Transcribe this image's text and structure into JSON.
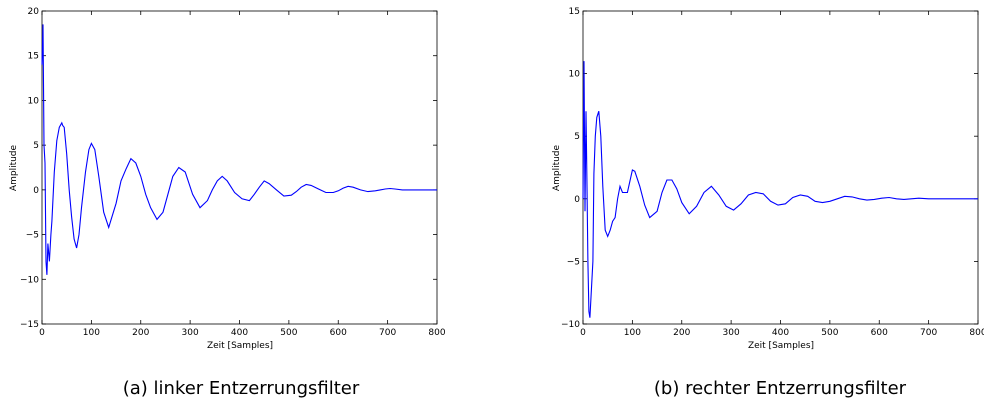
{
  "chart_data": [
    {
      "type": "line",
      "caption": "(a) linker Entzerrungsfilter",
      "xlabel": "Zeit [Samples]",
      "ylabel": "Amplitude",
      "xlim": [
        0,
        800
      ],
      "ylim": [
        -15,
        20
      ],
      "xticks": [
        0,
        100,
        200,
        300,
        400,
        500,
        600,
        700,
        800
      ],
      "yticks": [
        -15,
        -10,
        -5,
        0,
        5,
        10,
        15,
        20
      ],
      "color": "#0000ff",
      "series": [
        {
          "x": [
            0,
            2,
            4,
            6,
            8,
            10,
            12,
            15,
            18,
            20,
            25,
            30,
            35,
            40,
            42,
            45,
            50,
            55,
            60,
            65,
            70,
            75,
            80,
            88,
            95,
            100,
            107,
            115,
            125,
            135,
            150,
            160,
            170,
            180,
            190,
            200,
            210,
            220,
            233,
            245,
            255,
            265,
            277,
            290,
            305,
            320,
            335,
            345,
            355,
            365,
            375,
            390,
            405,
            420,
            430,
            440,
            450,
            460,
            475,
            490,
            505,
            515,
            525,
            535,
            545,
            560,
            575,
            590,
            600,
            610,
            620,
            630,
            645,
            660,
            675,
            685,
            695,
            705,
            715,
            730,
            760,
            800
          ],
          "y": [
            14,
            18.5,
            5,
            3,
            -8,
            -9.5,
            -6,
            -8,
            -5,
            -3.5,
            2,
            5.5,
            7,
            7.5,
            7.2,
            7,
            4,
            0,
            -3,
            -5.5,
            -6.5,
            -5,
            -2,
            2,
            4.5,
            5.2,
            4.5,
            1.5,
            -2.5,
            -4.2,
            -1.5,
            1,
            2.3,
            3.5,
            3,
            1.5,
            -0.5,
            -2,
            -3.3,
            -2.5,
            -0.5,
            1.5,
            2.5,
            2,
            -0.5,
            -2,
            -1.2,
            0,
            1,
            1.5,
            1,
            -0.3,
            -1,
            -1.2,
            -0.5,
            0.3,
            1,
            0.7,
            0,
            -0.7,
            -0.6,
            -0.2,
            0.3,
            0.6,
            0.5,
            0.1,
            -0.3,
            -0.3,
            -0.1,
            0.2,
            0.4,
            0.3,
            0,
            -0.2,
            -0.1,
            0,
            0.1,
            0.15,
            0.1,
            0,
            0,
            0
          ]
        }
      ]
    },
    {
      "type": "line",
      "caption": "(b) rechter Entzerrungsfilter",
      "xlabel": "Zeit [Samples]",
      "ylabel": "Amplitude",
      "xlim": [
        0,
        800
      ],
      "ylim": [
        -10,
        15
      ],
      "xticks": [
        0,
        100,
        200,
        300,
        400,
        500,
        600,
        700,
        800
      ],
      "yticks": [
        -10,
        -5,
        0,
        5,
        10,
        15
      ],
      "color": "#0000ff",
      "series": [
        {
          "x": [
            0,
            2,
            4,
            6,
            8,
            10,
            12,
            14,
            16,
            18,
            20,
            22,
            25,
            28,
            32,
            36,
            40,
            45,
            50,
            55,
            60,
            65,
            70,
            75,
            80,
            90,
            100,
            105,
            115,
            125,
            135,
            150,
            160,
            170,
            180,
            190,
            200,
            215,
            230,
            245,
            260,
            275,
            290,
            305,
            320,
            335,
            350,
            365,
            380,
            395,
            410,
            425,
            440,
            455,
            470,
            485,
            500,
            515,
            530,
            545,
            560,
            575,
            590,
            605,
            620,
            635,
            650,
            665,
            680,
            700,
            730,
            760,
            800
          ],
          "y": [
            0,
            11,
            -1,
            7,
            1,
            -5,
            -9,
            -9.5,
            -8,
            -6.5,
            -5,
            2,
            5,
            6.5,
            7,
            5,
            1,
            -2.5,
            -3,
            -2.5,
            -1.8,
            -1.5,
            0,
            1,
            0.5,
            0.5,
            2.3,
            2.2,
            1,
            -0.5,
            -1.5,
            -1,
            0.5,
            1.5,
            1.5,
            0.8,
            -0.3,
            -1.2,
            -0.6,
            0.5,
            1,
            0.3,
            -0.6,
            -0.9,
            -0.4,
            0.3,
            0.5,
            0.4,
            -0.2,
            -0.5,
            -0.4,
            0.1,
            0.3,
            0.2,
            -0.2,
            -0.3,
            -0.2,
            0,
            0.2,
            0.15,
            0,
            -0.1,
            -0.05,
            0.05,
            0.1,
            0,
            -0.05,
            0,
            0.05,
            0,
            0,
            0,
            0
          ]
        }
      ]
    }
  ]
}
